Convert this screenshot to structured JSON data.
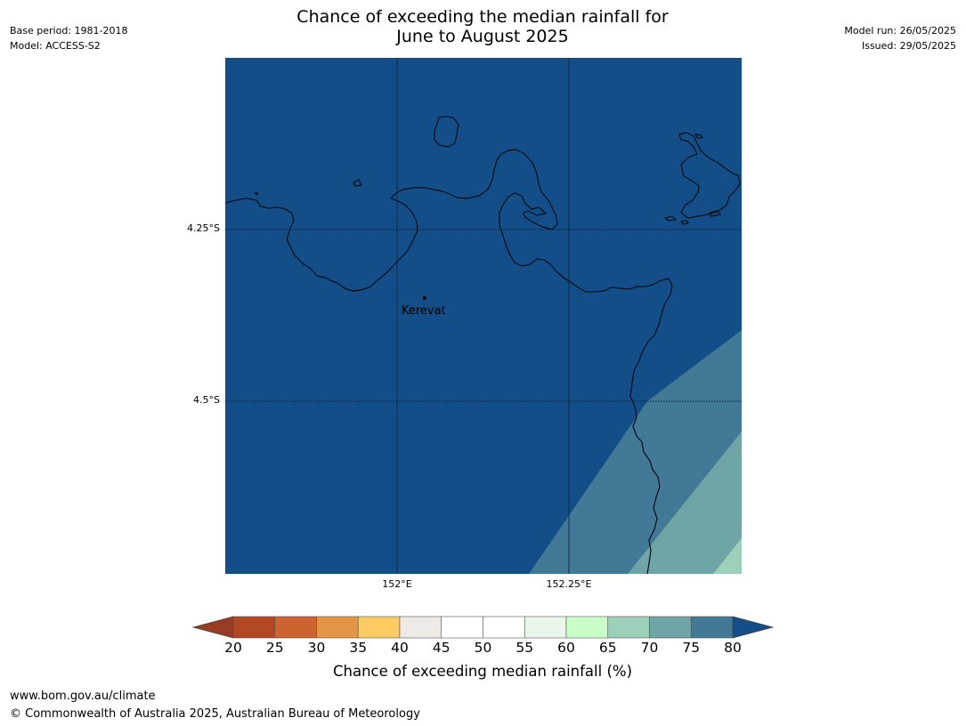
{
  "header": {
    "title_line1": "Chance of exceeding the median rainfall for",
    "title_line2": "June to August 2025",
    "base_period": "Base period: 1981-2018",
    "model": "Model: ACCESS-S2",
    "model_run": "Model run: 26/05/2025",
    "issued": "Issued: 29/05/2025"
  },
  "map": {
    "background_color": "#134e88",
    "lat_labels": [
      "4.25°S",
      "4.5°S"
    ],
    "lon_labels": [
      "152°E",
      "152.25°E"
    ],
    "place": {
      "name": "Kerevat"
    }
  },
  "colorbar": {
    "title": "Chance of exceeding median rainfall (%)",
    "ticks": [
      "20",
      "25",
      "30",
      "35",
      "40",
      "45",
      "50",
      "55",
      "60",
      "65",
      "70",
      "75",
      "80"
    ],
    "colors": [
      "#b34724",
      "#cc6330",
      "#e39444",
      "#fecb63",
      "#ede9e5",
      "#ffffff",
      "#ffffff",
      "#e9f6e9",
      "#c9fec9",
      "#9dd0b8",
      "#6fa5a6",
      "#427997"
    ],
    "under_color": "#973b25",
    "over_color": "#134e88"
  },
  "footer": {
    "url": "www.bom.gov.au/climate",
    "copyright": "© Commonwealth of Australia 2025, Australian Bureau of Meteorology"
  }
}
